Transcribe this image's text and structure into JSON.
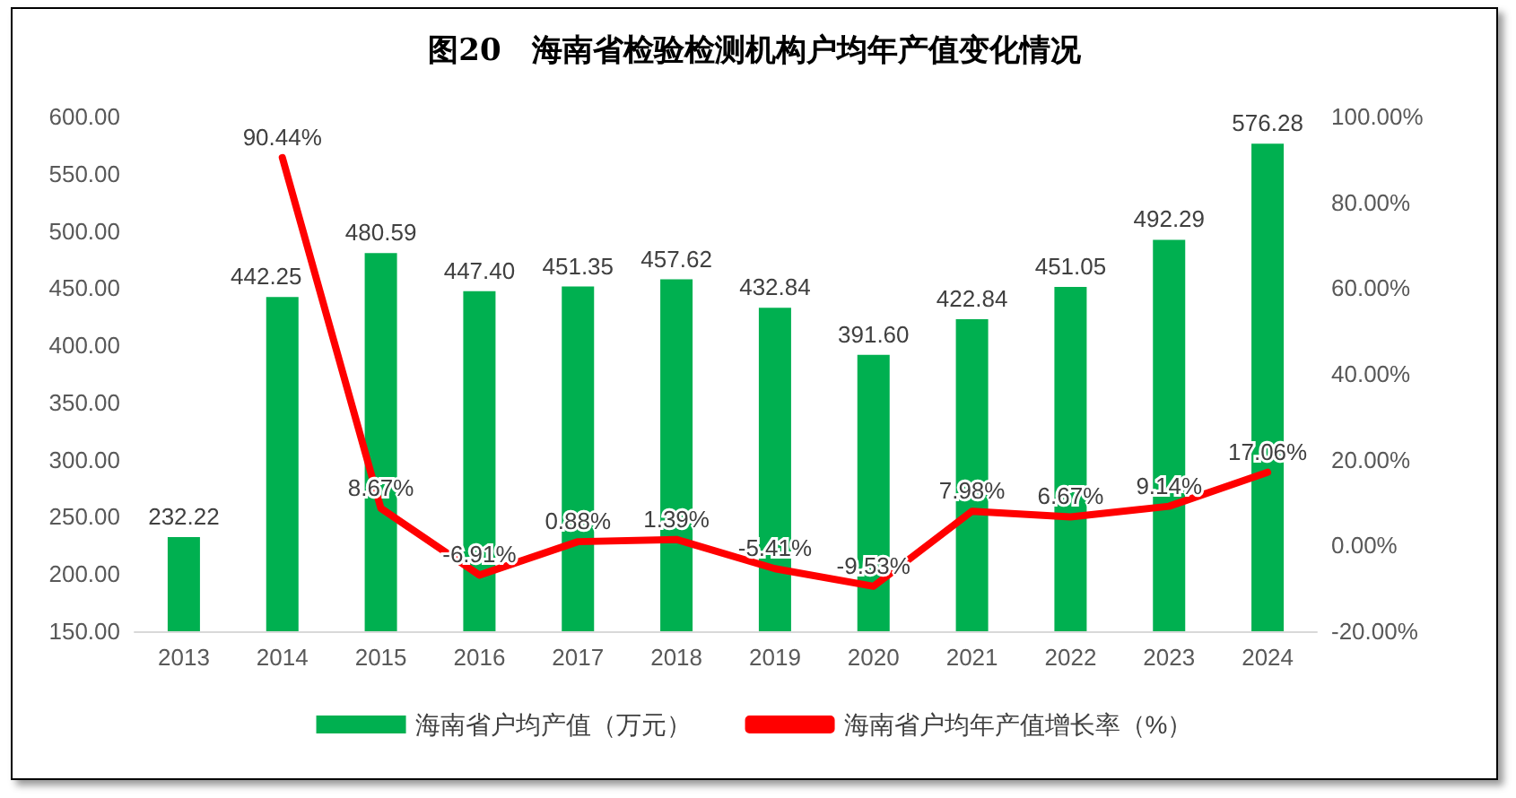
{
  "chart_data": {
    "type": "bar",
    "title": "图20　海南省检验检测机构户均年产值变化情况",
    "categories": [
      "2013",
      "2014",
      "2015",
      "2016",
      "2017",
      "2018",
      "2019",
      "2020",
      "2021",
      "2022",
      "2023",
      "2024"
    ],
    "series": [
      {
        "name": "海南省户均产值（万元）",
        "color": "#00b050",
        "values": [
          232.22,
          442.25,
          480.59,
          447.4,
          451.35,
          457.62,
          432.84,
          391.6,
          422.84,
          451.05,
          492.29,
          576.28
        ],
        "value_labels": [
          "232.22",
          "442.25",
          "480.59",
          "447.40",
          "451.35",
          "457.62",
          "432.84",
          "391.60",
          "422.84",
          "451.05",
          "492.29",
          "576.28"
        ]
      },
      {
        "name": "海南省户均年产值增长率（%）",
        "type": "line",
        "axis": "y2",
        "color": "#ff0000",
        "values": [
          null,
          90.44,
          8.67,
          -6.91,
          0.88,
          1.39,
          -5.41,
          -9.53,
          7.98,
          6.67,
          9.14,
          17.06
        ],
        "value_labels": [
          null,
          "90.44%",
          "8.67%",
          "-6.91%",
          "0.88%",
          "1.39%",
          "-5.41%",
          "-9.53%",
          "7.98%",
          "6.67%",
          "9.14%",
          "17.06%"
        ]
      }
    ],
    "ylim": [
      150,
      600
    ],
    "yticks": [
      {
        "value": 150,
        "label": "150.00"
      },
      {
        "value": 200,
        "label": "200.00"
      },
      {
        "value": 250,
        "label": "250.00"
      },
      {
        "value": 300,
        "label": "300.00"
      },
      {
        "value": 350,
        "label": "350.00"
      },
      {
        "value": 400,
        "label": "400.00"
      },
      {
        "value": 450,
        "label": "450.00"
      },
      {
        "value": 500,
        "label": "500.00"
      },
      {
        "value": 550,
        "label": "550.00"
      },
      {
        "value": 600,
        "label": "600.00"
      }
    ],
    "y2lim": [
      -20,
      100
    ],
    "y2ticks": [
      {
        "value": -20,
        "label": "-20.00%"
      },
      {
        "value": 0,
        "label": "0.00%"
      },
      {
        "value": 20,
        "label": "20.00%"
      },
      {
        "value": 40,
        "label": "40.00%"
      },
      {
        "value": 60,
        "label": "60.00%"
      },
      {
        "value": 80,
        "label": "80.00%"
      },
      {
        "value": 100,
        "label": "100.00%"
      }
    ],
    "grid": false,
    "legend": "bottom",
    "marker": "none",
    "line_style": "solid"
  }
}
